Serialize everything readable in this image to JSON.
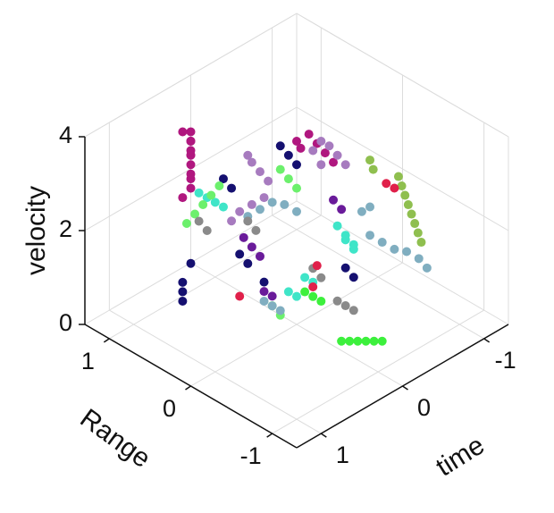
{
  "chart_data": {
    "type": "scatter3d",
    "xlabel": "time",
    "ylabel": "Range",
    "zlabel": "velocity",
    "xlim": [
      -1.3,
      1.3
    ],
    "ylim": [
      -1.3,
      1.3
    ],
    "zlim": [
      0,
      4
    ],
    "xticks": [
      -1,
      0,
      1
    ],
    "yticks": [
      -1,
      0,
      1
    ],
    "zticks": [
      0,
      2,
      4
    ],
    "grid": true,
    "series": [
      {
        "color": "#b0177f",
        "x": [
          0.4,
          0.4,
          0.45,
          0.45,
          0.5,
          0.5,
          0.35,
          0.35,
          0.3,
          0.5,
          0.55,
          0.4,
          -0.2,
          -0.25,
          -0.3,
          -0.35,
          -0.4,
          -0.45
        ],
        "y": [
          0.9,
          0.9,
          0.85,
          0.85,
          0.8,
          0.8,
          0.95,
          0.95,
          1.0,
          0.9,
          0.85,
          0.9,
          0.2,
          0.2,
          0.15,
          0.1,
          0.05,
          0.0
        ],
        "z": [
          3.6,
          3.4,
          3.2,
          3.0,
          2.8,
          2.6,
          3.3,
          3.1,
          2.9,
          3.7,
          2.4,
          2.7,
          3.5,
          3.3,
          3.6,
          3.4,
          3.2,
          3.0
        ]
      },
      {
        "color": "#a77bbf",
        "x": [
          0.1,
          0.05,
          0.0,
          -0.05,
          0.05,
          0.1,
          -0.3,
          -0.35,
          -0.4,
          -0.45,
          -0.5,
          -0.4,
          0.15,
          0.2
        ],
        "y": [
          0.5,
          0.5,
          0.45,
          0.4,
          0.35,
          0.45,
          0.1,
          0.05,
          0.0,
          -0.05,
          -0.1,
          0.1,
          0.55,
          0.6
        ],
        "z": [
          3.2,
          3.0,
          2.8,
          2.6,
          2.4,
          2.2,
          3.3,
          3.5,
          3.4,
          3.2,
          3.0,
          2.9,
          2.0,
          1.8
        ]
      },
      {
        "color": "#151070",
        "x": [
          0.9,
          0.85,
          0.8,
          0.3,
          0.25,
          -0.1,
          -0.15,
          -0.5,
          -0.55,
          0.5,
          0.45,
          -0.2,
          0.6,
          0.1
        ],
        "y": [
          0.5,
          0.55,
          0.6,
          0.6,
          0.55,
          0.3,
          0.25,
          -0.1,
          -0.15,
          0.2,
          0.15,
          0.2,
          0.7,
          0.3
        ],
        "z": [
          0.9,
          1.0,
          1.1,
          2.8,
          2.6,
          3.4,
          3.2,
          0.8,
          0.6,
          1.8,
          1.6,
          3.0,
          1.2,
          0.7
        ]
      },
      {
        "color": "#3fe5c8",
        "x": [
          0.45,
          0.4,
          0.35,
          0.3,
          -0.3,
          -0.35,
          -0.4,
          -0.1,
          -0.15,
          0.2,
          0.15,
          -0.5,
          -0.45
        ],
        "y": [
          0.75,
          0.7,
          0.65,
          0.6,
          -0.2,
          -0.25,
          -0.3,
          0.0,
          -0.05,
          -0.1,
          -0.15,
          -0.2,
          -0.15
        ],
        "z": [
          2.5,
          2.4,
          2.3,
          2.2,
          2.0,
          1.8,
          1.6,
          0.9,
          0.8,
          1.0,
          0.9,
          1.3,
          1.5
        ]
      },
      {
        "color": "#6cf06c",
        "x": [
          0.5,
          0.45,
          0.4,
          0.35,
          0.0,
          -0.05,
          -0.1,
          0.3,
          0.25,
          0.55
        ],
        "y": [
          0.75,
          0.7,
          0.65,
          0.6,
          0.2,
          0.15,
          0.1,
          0.0,
          -0.05,
          0.8
        ],
        "z": [
          2.1,
          2.3,
          2.5,
          2.7,
          3.1,
          2.9,
          2.7,
          0.7,
          0.5,
          1.9
        ]
      },
      {
        "color": "#80aec0",
        "x": [
          0.2,
          0.1,
          0.0,
          -0.1,
          -0.2,
          -0.5,
          -0.6,
          -0.7,
          -0.8,
          -0.9,
          -0.95,
          0.4,
          0.35,
          0.3,
          -0.6,
          -0.65
        ],
        "y": [
          0.4,
          0.35,
          0.3,
          0.25,
          0.2,
          -0.4,
          -0.45,
          -0.5,
          -0.55,
          -0.6,
          -0.65,
          0.0,
          -0.05,
          -0.1,
          -0.2,
          -0.25
        ],
        "z": [
          2.1,
          2.2,
          2.3,
          2.2,
          2.0,
          1.8,
          1.6,
          1.4,
          1.3,
          1.1,
          0.9,
          0.9,
          0.8,
          0.7,
          2.0,
          2.1
        ]
      },
      {
        "color": "#8fbf4f",
        "x": [
          -0.7,
          -0.72,
          -0.74,
          -0.76,
          -0.78,
          -0.8,
          -0.82,
          -0.84,
          -0.6,
          -0.62
        ],
        "y": [
          -0.55,
          -0.57,
          -0.59,
          -0.61,
          -0.63,
          -0.65,
          -0.67,
          -0.69,
          -0.3,
          -0.32
        ],
        "z": [
          3.0,
          2.8,
          2.6,
          2.4,
          2.2,
          2.0,
          1.8,
          1.6,
          3.2,
          3.0
        ]
      },
      {
        "color": "#8a8a8a",
        "x": [
          0.6,
          0.55,
          0.2,
          0.15,
          -0.2,
          -0.25,
          -0.3,
          0.1,
          0.05
        ],
        "y": [
          0.6,
          0.55,
          0.4,
          0.35,
          -0.3,
          -0.35,
          -0.4,
          -0.3,
          -0.35
        ],
        "z": [
          2.2,
          2.0,
          2.0,
          1.8,
          0.6,
          0.5,
          0.4,
          1.6,
          1.4
        ]
      },
      {
        "color": "#3cf03c",
        "x": [
          0.05,
          0.0,
          -0.05,
          -0.1,
          -0.15,
          -0.2,
          0.2,
          0.15,
          0.1
        ],
        "y": [
          -0.6,
          -0.65,
          -0.7,
          -0.75,
          -0.8,
          -0.85,
          -0.3,
          -0.35,
          -0.4
        ],
        "z": [
          0.3,
          0.3,
          0.3,
          0.3,
          0.3,
          0.3,
          1.2,
          1.1,
          1.0
        ]
      },
      {
        "color": "#6a1b9a",
        "x": [
          0.3,
          0.25,
          0.2,
          -0.35,
          -0.4,
          0.1,
          0.05
        ],
        "y": [
          0.35,
          0.3,
          0.25,
          -0.1,
          -0.15,
          0.3,
          0.25
        ],
        "z": [
          1.8,
          1.6,
          1.4,
          2.4,
          2.2,
          0.5,
          0.4
        ]
      },
      {
        "color": "#e0204a",
        "x": [
          -0.3,
          -0.1,
          0.35,
          -0.75,
          -0.8
        ],
        "y": [
          0.05,
          -0.1,
          0.35,
          -0.35,
          -0.4
        ],
        "z": [
          0.9,
          0.8,
          0.6,
          2.6,
          2.5
        ]
      }
    ]
  }
}
